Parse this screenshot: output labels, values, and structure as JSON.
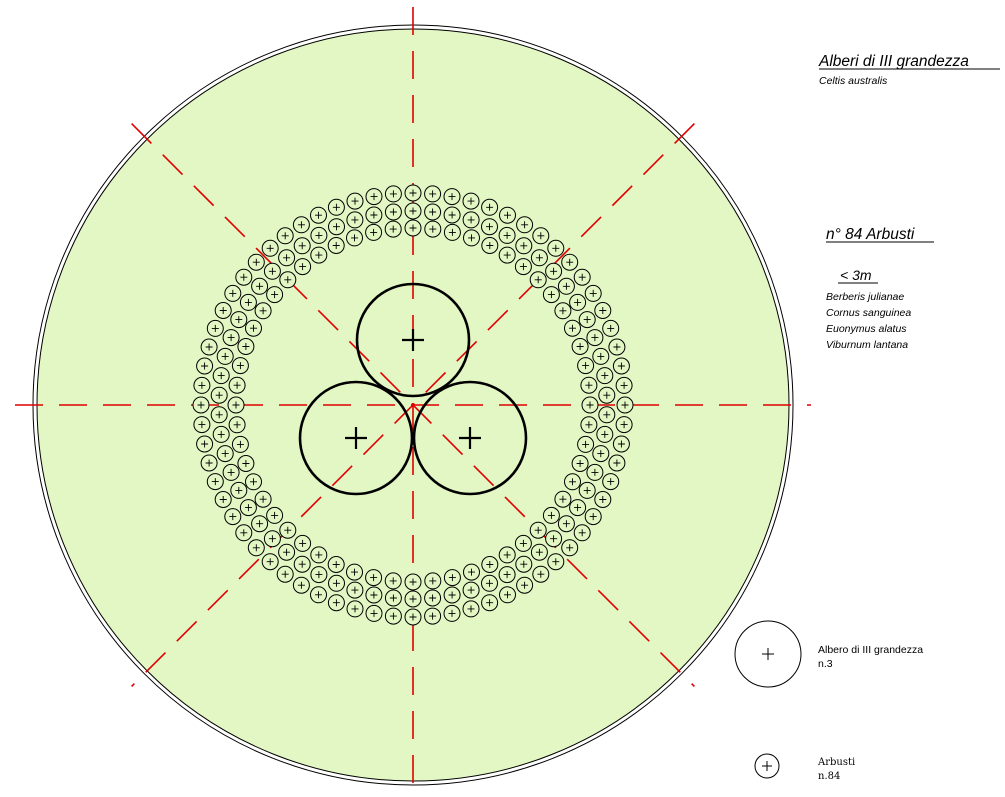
{
  "colors": {
    "ground": "#E3F7C4",
    "shrub_fill": "#E3F7C4",
    "axis": "#E00000",
    "outline": "#000000"
  },
  "trees_section": {
    "title": "Alberi di III grandezza",
    "species": [
      "Celtis australis"
    ]
  },
  "shrubs_section": {
    "title": "n° 84 Arbusti",
    "height_class": "< 3m",
    "species": [
      "Berberis julianae",
      "Cornus sanguinea",
      "Euonymus alatus",
      "Viburnum lantana"
    ]
  },
  "legend": {
    "tree": {
      "label": "Albero di III grandezza",
      "count": "n.3",
      "icon": "plus-icon"
    },
    "shrub": {
      "label": "Arbusti",
      "count": "n.84",
      "icon": "plus-icon"
    }
  }
}
